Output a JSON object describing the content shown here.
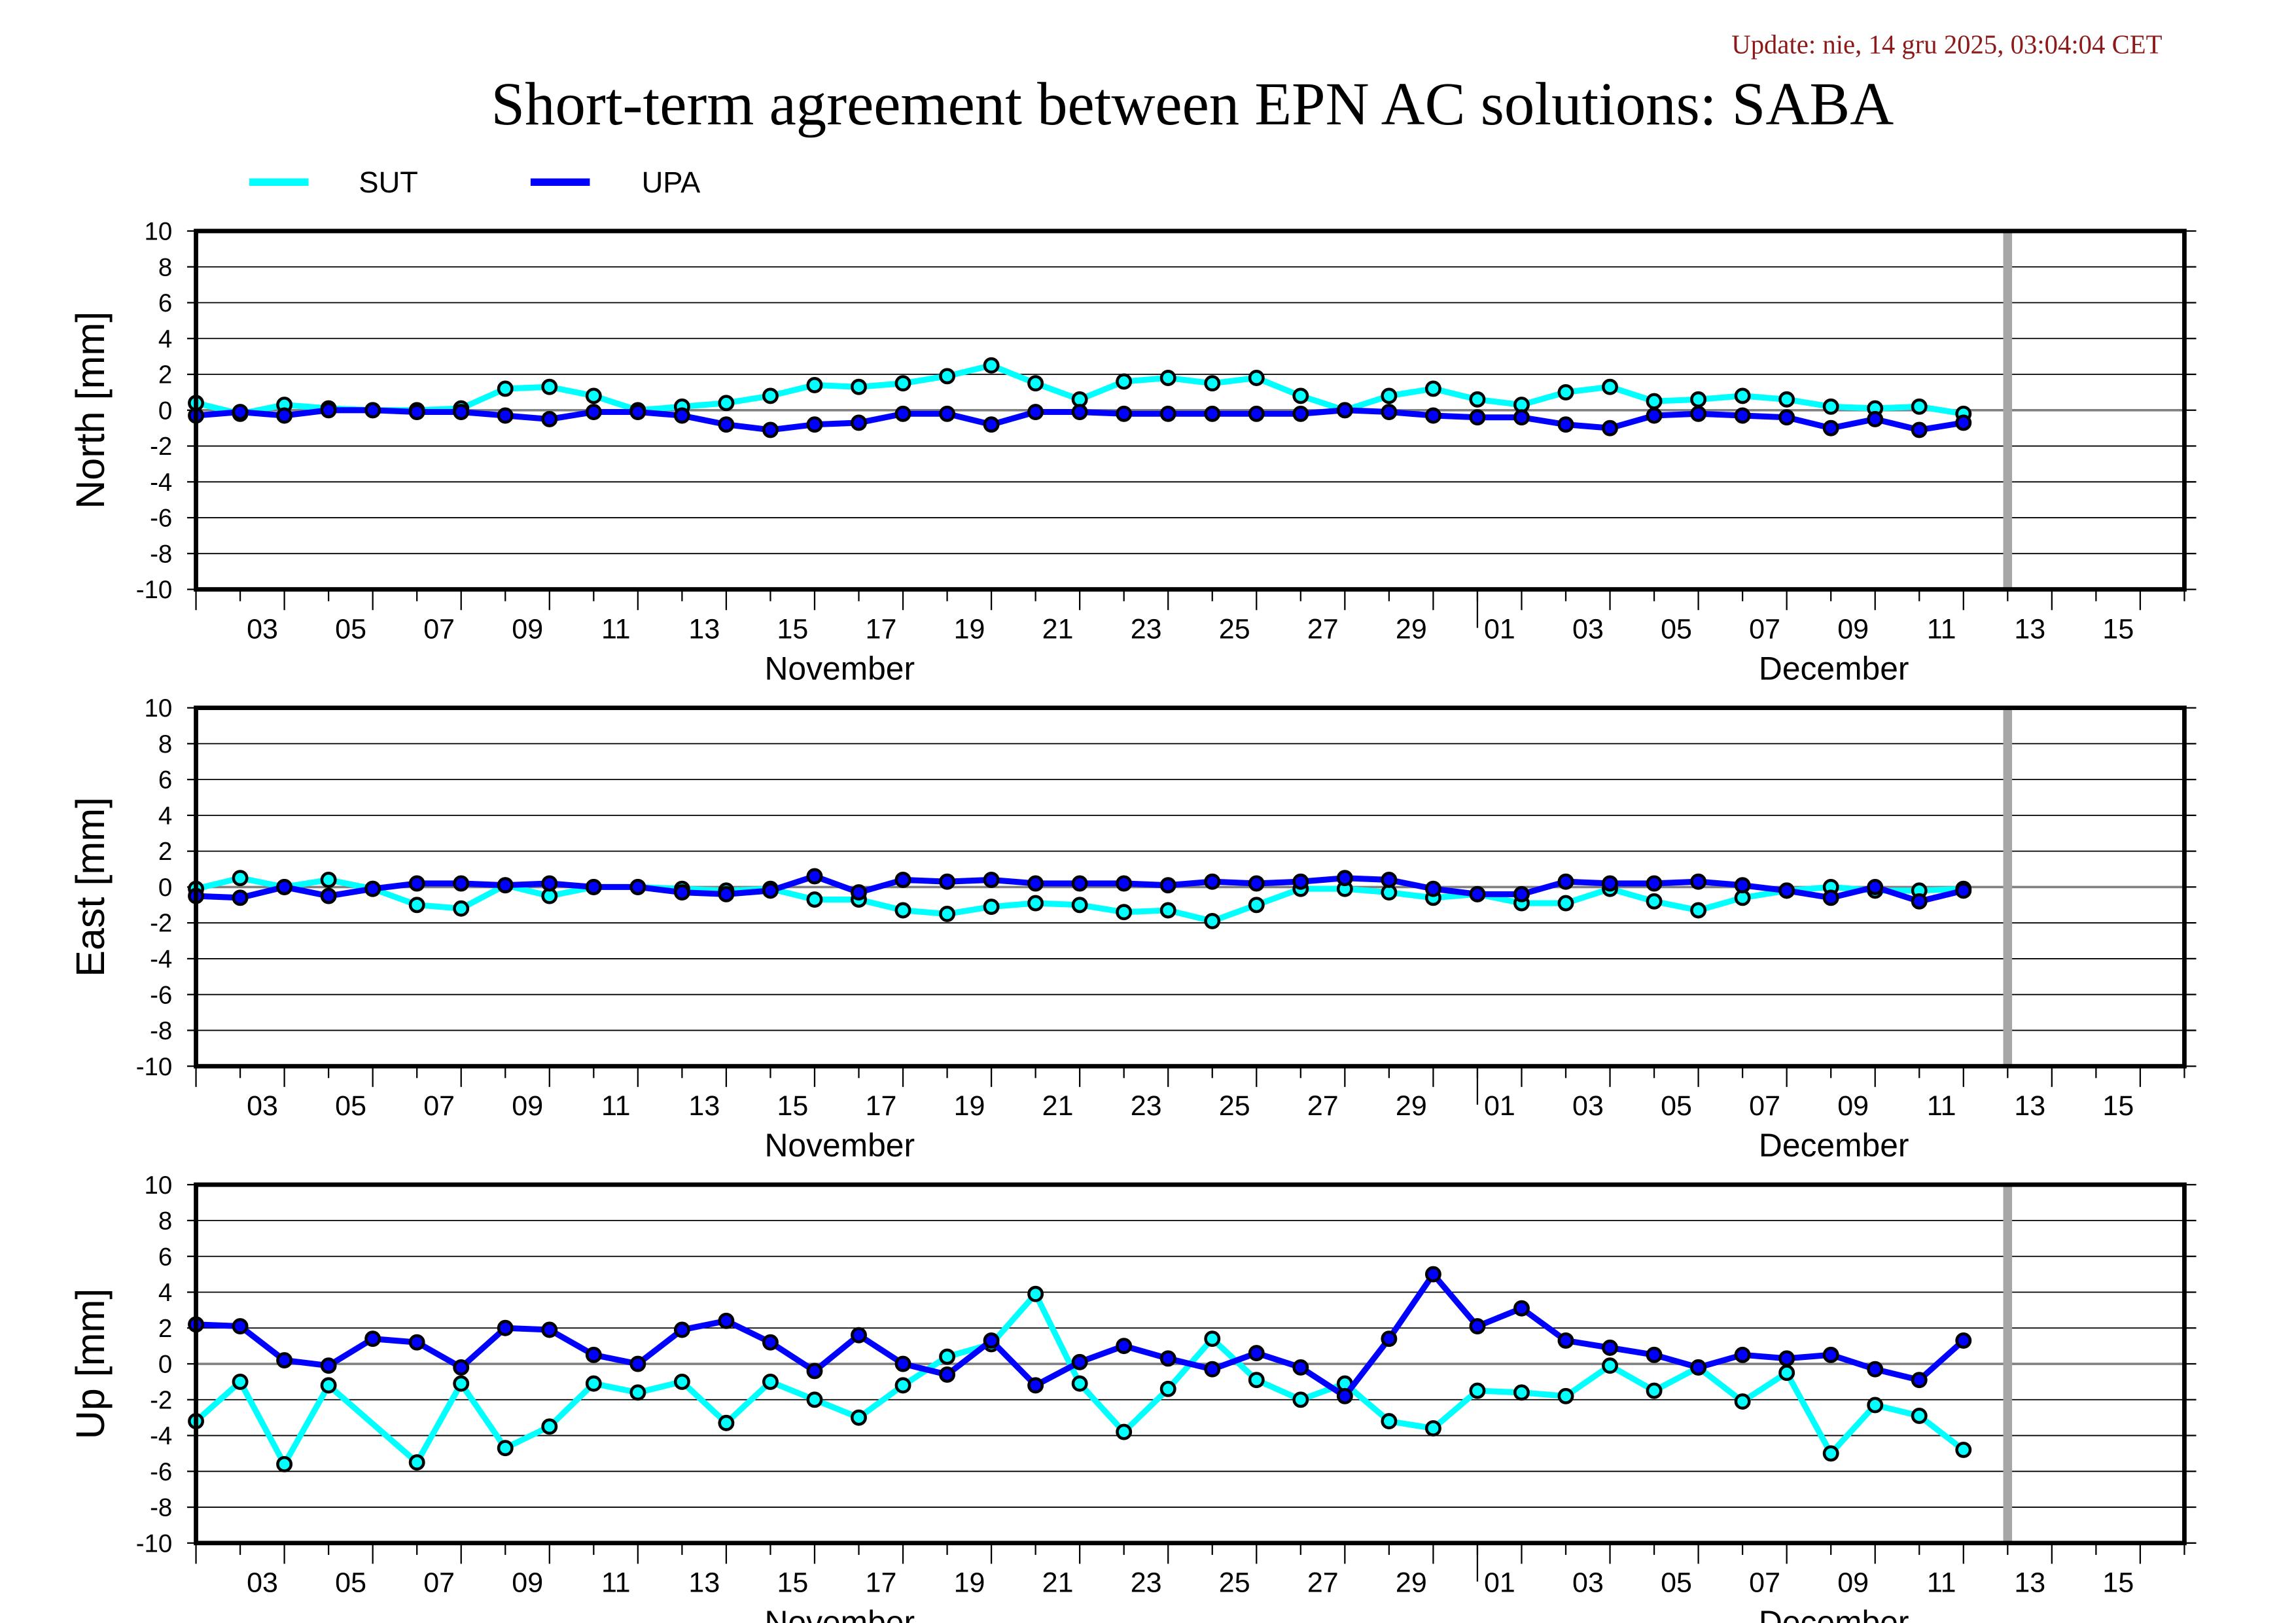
{
  "update_text": "Update: nie, 14 gru 2025, 03:04:04 CET",
  "colors": {
    "SUT": "#00ffff",
    "UPA": "#0000ff",
    "update": "#8b1a1a",
    "today_bar": "#a6a6a6"
  },
  "chart_data": {
    "type": "line",
    "title": "Short-term agreement between EPN AC solutions: SABA",
    "legend": [
      {
        "name": "SUT"
      },
      {
        "name": "UPA"
      }
    ],
    "legend_placement": "top-left",
    "x_start": "2025-11-02",
    "x_range_days": [
      0,
      45
    ],
    "today_marker_day": 41,
    "x_tick_labels": [
      "03",
      "05",
      "07",
      "09",
      "11",
      "13",
      "15",
      "17",
      "19",
      "21",
      "23",
      "25",
      "27",
      "29",
      "01",
      "03",
      "05",
      "07",
      "09",
      "11",
      "13",
      "15"
    ],
    "x_tick_label_days": [
      1,
      3,
      5,
      7,
      9,
      11,
      13,
      15,
      17,
      19,
      21,
      23,
      25,
      27,
      29,
      31,
      33,
      35,
      37,
      39,
      41,
      43
    ],
    "month_labels": [
      {
        "label": "November",
        "center_day": 14.5
      },
      {
        "label": "December",
        "center_day": 37
      }
    ],
    "month_separator_day": 29,
    "y_ticks": [
      10,
      8,
      6,
      4,
      2,
      0,
      -2,
      -4,
      -6,
      -8,
      -10
    ],
    "ylim": [
      -10,
      10
    ],
    "grid": true,
    "panels": [
      {
        "ylabel": "North [mm]",
        "series": [
          {
            "name": "SUT",
            "values": [
              0.4,
              -0.2,
              0.3,
              0.1,
              0,
              0,
              0.1,
              1.2,
              1.3,
              0.8,
              0,
              0.2,
              0.4,
              0.8,
              1.4,
              1.3,
              1.5,
              1.9,
              2.5,
              1.5,
              0.6,
              1.6,
              1.8,
              1.5,
              1.8,
              0.8,
              0,
              0.8,
              1.2,
              0.6,
              0.3,
              1.0,
              1.3,
              0.5,
              0.6,
              0.8,
              0.6,
              0.2,
              0.1,
              0.2,
              -0.2
            ]
          },
          {
            "name": "UPA",
            "values": [
              -0.3,
              -0.1,
              -0.3,
              0,
              0,
              -0.1,
              -0.1,
              -0.3,
              -0.5,
              -0.1,
              -0.1,
              -0.3,
              -0.8,
              -1.1,
              -0.8,
              -0.7,
              -0.2,
              -0.2,
              -0.8,
              -0.1,
              -0.1,
              -0.2,
              -0.2,
              -0.2,
              -0.2,
              -0.2,
              0,
              -0.1,
              -0.3,
              -0.4,
              -0.4,
              -0.8,
              -1.0,
              -0.3,
              -0.2,
              -0.3,
              -0.4,
              -1.0,
              -0.5,
              -1.1,
              -0.7
            ]
          }
        ]
      },
      {
        "ylabel": "East [mm]",
        "series": [
          {
            "name": "SUT",
            "values": [
              -0.1,
              0.5,
              0,
              0.4,
              -0.1,
              -1.0,
              -1.2,
              0.1,
              -0.5,
              0,
              0,
              -0.1,
              -0.2,
              -0.1,
              -0.7,
              -0.7,
              -1.3,
              -1.5,
              -1.1,
              -0.9,
              -1.0,
              -1.4,
              -1.3,
              -1.9,
              -1.0,
              -0.1,
              -0.1,
              -0.3,
              -0.6,
              -0.4,
              -0.9,
              -0.9,
              -0.1,
              -0.8,
              -1.3,
              -0.6,
              -0.2,
              0,
              -0.2,
              -0.2,
              -0.1
            ]
          },
          {
            "name": "UPA",
            "values": [
              -0.5,
              -0.6,
              0,
              -0.5,
              -0.1,
              0.2,
              0.2,
              0.1,
              0.2,
              0,
              0,
              -0.3,
              -0.4,
              -0.2,
              0.6,
              -0.3,
              0.4,
              0.3,
              0.4,
              0.2,
              0.2,
              0.2,
              0.1,
              0.3,
              0.2,
              0.3,
              0.5,
              0.4,
              -0.1,
              -0.4,
              -0.4,
              0.3,
              0.2,
              0.2,
              0.3,
              0.1,
              -0.2,
              -0.6,
              0,
              -0.8,
              -0.2
            ]
          }
        ]
      },
      {
        "ylabel": "Up [mm]",
        "series": [
          {
            "name": "SUT",
            "values": [
              -3.2,
              -1.0,
              -5.6,
              -1.2,
              null,
              -5.5,
              -1.1,
              -4.7,
              -3.5,
              -1.1,
              -1.6,
              -1.0,
              -3.3,
              -1.0,
              -2.0,
              -3.0,
              -1.2,
              0.4,
              1.1,
              3.9,
              -1.1,
              -3.8,
              -1.4,
              1.4,
              -0.9,
              -2.0,
              -1.1,
              -3.2,
              -3.6,
              -1.5,
              -1.6,
              -1.8,
              -0.1,
              -1.5,
              -0.2,
              -2.1,
              -0.5,
              -5.0,
              -2.3,
              -2.9,
              -4.8
            ]
          },
          {
            "name": "UPA",
            "values": [
              2.2,
              2.1,
              0.2,
              -0.1,
              1.4,
              1.2,
              -0.2,
              2.0,
              1.9,
              0.5,
              0,
              1.9,
              2.4,
              1.2,
              -0.4,
              1.6,
              0,
              -0.6,
              1.3,
              -1.2,
              0.1,
              1.0,
              0.3,
              -0.3,
              0.6,
              -0.2,
              -1.8,
              1.4,
              5.0,
              2.1,
              3.1,
              1.3,
              0.9,
              0.5,
              -0.2,
              0.5,
              0.3,
              0.5,
              -0.3,
              -0.9,
              1.3
            ]
          }
        ]
      }
    ]
  }
}
